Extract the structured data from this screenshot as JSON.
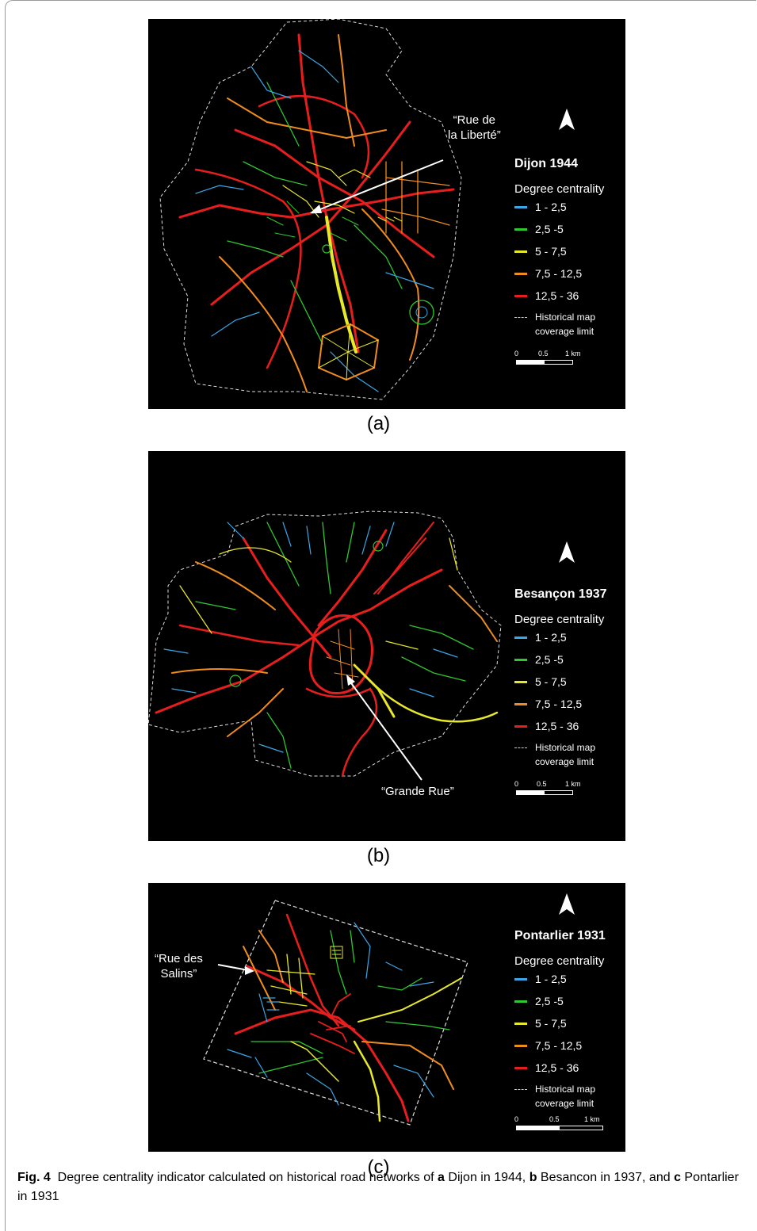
{
  "panels": [
    {
      "id": "a",
      "label": "(a)",
      "city": "Dijon 1944",
      "callout": [
        "“Rue de",
        "la Liberté”"
      ]
    },
    {
      "id": "b",
      "label": "(b)",
      "city": "Besançon 1937",
      "callout": [
        "“Grande Rue”"
      ]
    },
    {
      "id": "c",
      "label": "(c)",
      "city": "Pontarlier 1931",
      "callout": [
        "“Rue des",
        "Salins”"
      ]
    }
  ],
  "legend": {
    "title": "Degree centrality",
    "classes": [
      {
        "label": "1 - 2,5",
        "color": "#3aa7e8"
      },
      {
        "label": "2,5 -5",
        "color": "#2fc82f"
      },
      {
        "label": "5 - 7,5",
        "color": "#e8e82a"
      },
      {
        "label": "7,5 - 12,5",
        "color": "#f08c1e"
      },
      {
        "label": "12,5 - 36",
        "color": "#e81e1e"
      }
    ],
    "limit_line1": "Historical map",
    "limit_line2": "coverage limit",
    "scale": {
      "t0": "0",
      "t1": "0.5",
      "t2": "1 km"
    }
  },
  "caption": {
    "fig": "Fig. 4",
    "text1": "Degree centrality indicator calculated on historical road networks of",
    "a": "a",
    "t_a": "Dijon in 1944,",
    "b": "b",
    "t_b": "Besancon in 1937, and",
    "c": "c",
    "t_c": "Pontarlier in 1931"
  }
}
